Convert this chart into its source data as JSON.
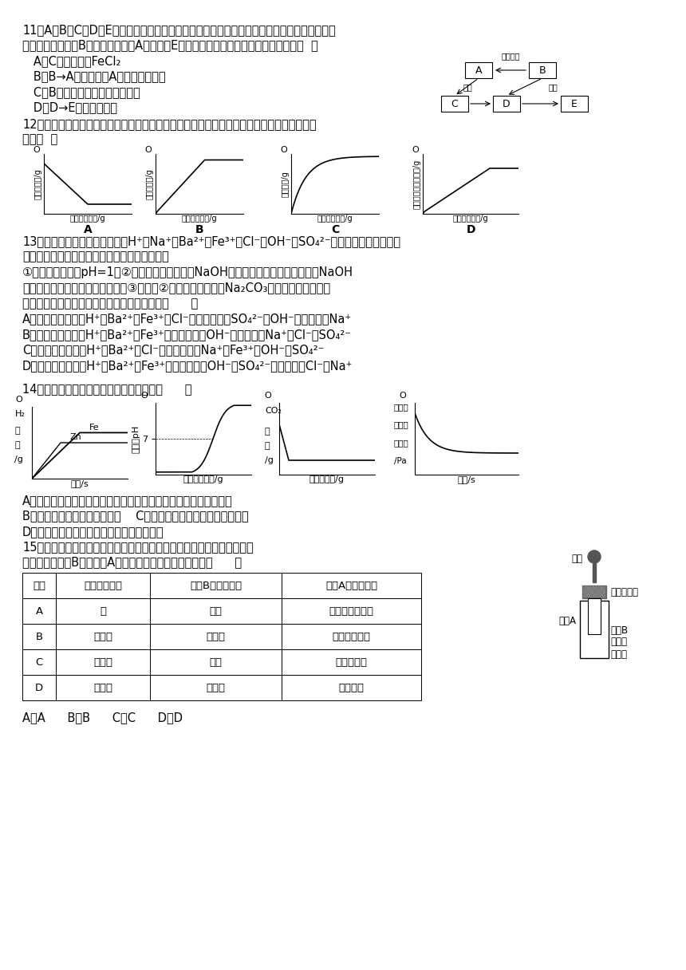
{
  "page_bg": "#ffffff",
  "text_color": "#000000",
  "q11_lines": [
    "11、A、B、C、D、E均含同一种金属元素，它们之间的转化关系如图所示（部分物质和反应条",
    "件略去）。已知：B为红棕色固体；A为单质；E为红褐色难溢性碱。下列说法正确的是（  ）",
    "   A．C的化学式为FeCl₂",
    "   B．B→A是工业制取A的主要反应原理",
    "   C．B和盐酸反应生成浅绿色溶液",
    "   D．D→E属于置换反应"
  ],
  "q12_lines": [
    "12、向盛有一定量氧化鐵的烧杯中不断滴入稀硫酸，下列是烧杯中有关量的变化图，其中正确",
    "的是（  ）"
  ],
  "q13_lines": [
    "13、一澄清透明溢液，可能含有H⁺、Na⁺、Ba²⁺、Fe³⁺、Cl⁻、OH⁻、SO₄²⁻离子的一种或者几种，",
    "为确定溢液中可能存在的离子，进行下面实验：",
    "①经测定，溢液的pH=1；②取部分样品溢液滴加NaOH溢液，有沉淠生成，继续滴加NaOH",
    "溢液至不再产生沉淠为止，过滤；③向实验②得到的溢液中滴加Na₂CO₃溢液，又观察到沉淠",
    "生成。分析实验得到的以下结论中，正确的是（      ）",
    "A．溢液中一定含有H⁺、Ba²⁺、Fe³⁺、Cl⁻，一定不含有SO₄²⁻、OH⁻，可能含有Na⁺",
    "B．溢液中一定含有H⁺、Ba²⁺、Fe³⁺，一定不含有OH⁻，可能含有Na⁺、Cl⁻、SO₄²⁻",
    "C．溢液中一定含有H⁺、Ba²⁺、Cl⁻，一定不含有Na⁺、Fe³⁺、OH⁻、SO₄²⁻",
    "D．溢液中一定含有H⁺、Ba²⁺、Fe³⁺，一定不含有OH⁻、SO₄²⁻，可能含有Cl⁻、Na⁺"
  ],
  "q14_lines": [
    "14、下列图像能正确反映其对应关系的是（      ）",
    "A．相同质量和相同质量分数的稀硫酸与足量的两种金属，分别反应",
    "B．向一定量的稀盐酸中滴入水    C．向一定量的稀盐酸中加入石灰石",
    "D．在密闭容器中用红磷测定空气中氧气含量"
  ],
  "q15_lines": [
    "15、如图所示，实验小组的同学按表中的选项添加试剂，实验时将滴管中",
    "的液体滴入试管B中，试管A中的溢液甲没有明显现象的是（      ）"
  ],
  "table_headers": [
    "选项",
    "滴管中的液体",
    "试管B中的固体乙",
    "试管A中的溢液甲"
  ],
  "table_data": [
    [
      "A",
      "水",
      "烧碘",
      "饱和澄清石灰水"
    ],
    [
      "B",
      "浓氨水",
      "熟石灰",
      "紫色石蕊溢液"
    ],
    [
      "C",
      "浓盐酸",
      "铜片",
      "确酸銀溢液"
    ],
    [
      "D",
      "稀盐酸",
      "石灰石",
      "酚酞溢液"
    ]
  ],
  "answer_line": "A．A      B．B      C．C      D．D",
  "diagram_labels": {
    "q11": {
      "A_label": "A",
      "B_label": "B",
      "C_label": "C",
      "D_label": "D",
      "E_label": "E",
      "top_arrow": "一氧化碳",
      "left_arrow": "盐酸",
      "right_arrow": "盐酸"
    }
  }
}
